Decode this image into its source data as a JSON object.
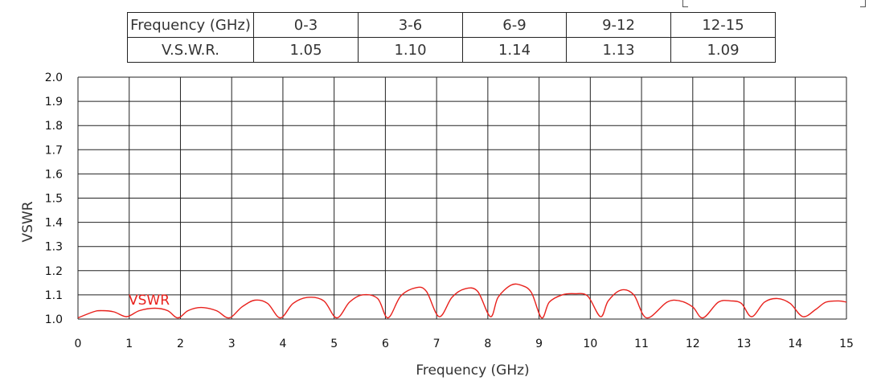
{
  "table": {
    "rows": [
      {
        "header": "Frequency (GHz)",
        "cells": [
          "0-3",
          "3-6",
          "6-9",
          "9-12",
          "12-15"
        ]
      },
      {
        "header": "V.S.W.R.",
        "cells": [
          "1.05",
          "1.10",
          "1.14",
          "1.13",
          "1.09"
        ]
      }
    ]
  },
  "chart_data": {
    "type": "line",
    "xlabel": "Frequency (GHz)",
    "ylabel": "VSWR",
    "xlim": [
      0,
      15
    ],
    "ylim": [
      1.0,
      2.0
    ],
    "grid": true,
    "x_ticks": [
      "0",
      "1",
      "2",
      "3",
      "4",
      "5",
      "6",
      "7",
      "8",
      "9",
      "10",
      "11",
      "12",
      "13",
      "14",
      "15"
    ],
    "y_ticks": [
      "1.0",
      "1.1",
      "1.2",
      "1.3",
      "1.4",
      "1.5",
      "1.6",
      "1.7",
      "1.8",
      "1.9",
      "2.0"
    ],
    "series": [
      {
        "name": "VSWR",
        "color": "#e8211c",
        "x": [
          0,
          0.3,
          0.45,
          0.7,
          0.95,
          1.2,
          1.5,
          1.75,
          1.95,
          2.15,
          2.4,
          2.7,
          2.95,
          3.2,
          3.45,
          3.7,
          3.95,
          4.2,
          4.5,
          4.8,
          5.05,
          5.3,
          5.55,
          5.85,
          6.05,
          6.3,
          6.6,
          6.8,
          7.05,
          7.3,
          7.55,
          7.8,
          8.05,
          8.2,
          8.45,
          8.65,
          8.85,
          9.05,
          9.2,
          9.45,
          9.7,
          9.95,
          10.2,
          10.35,
          10.6,
          10.85,
          11.1,
          11.5,
          11.75,
          12.0,
          12.2,
          12.5,
          12.75,
          12.95,
          13.15,
          13.4,
          13.65,
          13.9,
          14.15,
          14.4,
          14.6,
          14.85,
          15.0
        ],
        "y": [
          1.005,
          1.03,
          1.035,
          1.03,
          1.01,
          1.035,
          1.045,
          1.035,
          1.005,
          1.035,
          1.048,
          1.035,
          1.005,
          1.05,
          1.078,
          1.065,
          1.005,
          1.065,
          1.09,
          1.075,
          1.005,
          1.07,
          1.1,
          1.085,
          1.005,
          1.095,
          1.13,
          1.115,
          1.01,
          1.09,
          1.125,
          1.115,
          1.01,
          1.09,
          1.14,
          1.14,
          1.11,
          1.005,
          1.07,
          1.1,
          1.105,
          1.095,
          1.01,
          1.075,
          1.12,
          1.1,
          1.005,
          1.07,
          1.075,
          1.05,
          1.005,
          1.07,
          1.075,
          1.065,
          1.01,
          1.07,
          1.085,
          1.065,
          1.01,
          1.04,
          1.07,
          1.075,
          1.07
        ]
      }
    ]
  }
}
